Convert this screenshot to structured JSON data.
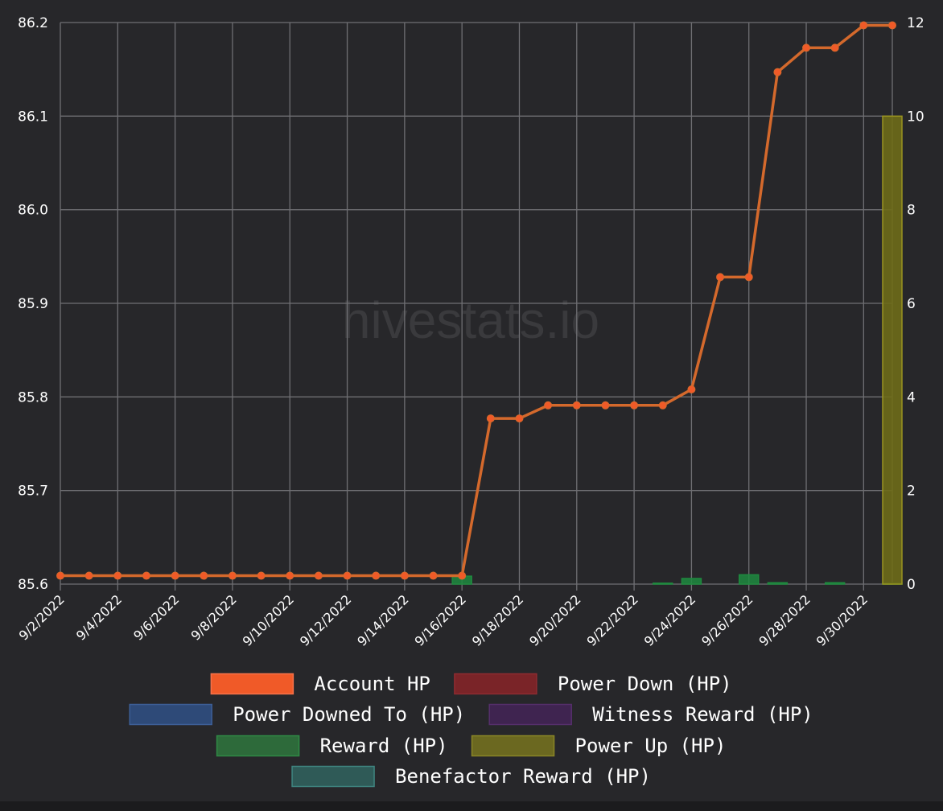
{
  "watermark": "hivestats.io",
  "colors": {
    "account_hp_line": "#d4692c",
    "account_hp_point": "#f05a28",
    "reward": "#1f8a3f",
    "power_up": "#6e6b18",
    "power_up_border": "#9a941f"
  },
  "chart_data": {
    "type": "line",
    "grid": true,
    "legend_position": "bottom",
    "x": [
      "9/2/2022",
      "9/3/2022",
      "9/4/2022",
      "9/5/2022",
      "9/6/2022",
      "9/7/2022",
      "9/8/2022",
      "9/9/2022",
      "9/10/2022",
      "9/11/2022",
      "9/12/2022",
      "9/13/2022",
      "9/14/2022",
      "9/15/2022",
      "9/16/2022",
      "9/17/2022",
      "9/18/2022",
      "9/19/2022",
      "9/20/2022",
      "9/21/2022",
      "9/22/2022",
      "9/23/2022",
      "9/24/2022",
      "9/25/2022",
      "9/26/2022",
      "9/27/2022",
      "9/28/2022",
      "9/29/2022",
      "9/30/2022",
      "10/1/2022"
    ],
    "x_tick_labels": [
      "9/2/2022",
      "9/4/2022",
      "9/6/2022",
      "9/8/2022",
      "9/10/2022",
      "9/12/2022",
      "9/14/2022",
      "9/16/2022",
      "9/18/2022",
      "9/20/2022",
      "9/22/2022",
      "9/24/2022",
      "9/26/2022",
      "9/28/2022",
      "9/30/2022"
    ],
    "y_left": {
      "min": 85.6,
      "max": 86.2,
      "ticks": [
        "85.6",
        "85.7",
        "85.8",
        "85.9",
        "86.0",
        "86.1",
        "86.2"
      ]
    },
    "y_right": {
      "min": 0,
      "max": 12,
      "ticks": [
        "0",
        "2",
        "4",
        "6",
        "8",
        "10",
        "12"
      ]
    },
    "series": [
      {
        "name": "Account HP",
        "axis": "left",
        "type": "line",
        "values": [
          85.609,
          85.609,
          85.609,
          85.609,
          85.609,
          85.609,
          85.609,
          85.609,
          85.609,
          85.609,
          85.609,
          85.609,
          85.609,
          85.609,
          85.609,
          85.777,
          85.777,
          85.791,
          85.791,
          85.791,
          85.791,
          85.791,
          85.808,
          85.928,
          85.928,
          86.147,
          86.173,
          86.173,
          86.197,
          86.197
        ]
      },
      {
        "name": "Power Down (HP)",
        "axis": "right",
        "type": "bar",
        "values": [
          0,
          0,
          0,
          0,
          0,
          0,
          0,
          0,
          0,
          0,
          0,
          0,
          0,
          0,
          0,
          0,
          0,
          0,
          0,
          0,
          0,
          0,
          0,
          0,
          0,
          0,
          0,
          0,
          0,
          0
        ]
      },
      {
        "name": "Power Downed To (HP)",
        "axis": "right",
        "type": "bar",
        "values": [
          0,
          0,
          0,
          0,
          0,
          0,
          0,
          0,
          0,
          0,
          0,
          0,
          0,
          0,
          0,
          0,
          0,
          0,
          0,
          0,
          0,
          0,
          0,
          0,
          0,
          0,
          0,
          0,
          0,
          0
        ]
      },
      {
        "name": "Witness Reward (HP)",
        "axis": "right",
        "type": "bar",
        "values": [
          0,
          0,
          0,
          0,
          0,
          0,
          0,
          0,
          0,
          0,
          0,
          0,
          0,
          0,
          0,
          0,
          0,
          0,
          0,
          0,
          0,
          0,
          0,
          0,
          0,
          0,
          0,
          0,
          0,
          0
        ]
      },
      {
        "name": "Reward (HP)",
        "axis": "right",
        "type": "bar",
        "values": [
          0,
          0,
          0,
          0,
          0,
          0,
          0,
          0,
          0,
          0,
          0,
          0,
          0,
          0,
          0.17,
          0,
          0,
          0,
          0,
          0,
          0,
          0.02,
          0.12,
          0,
          0.2,
          0.03,
          0,
          0.03,
          0,
          0.02
        ]
      },
      {
        "name": "Power Up (HP)",
        "axis": "right",
        "type": "bar",
        "values": [
          0,
          0,
          0,
          0,
          0,
          0,
          0,
          0,
          0,
          0,
          0,
          0,
          0,
          0,
          0,
          0,
          0,
          0,
          0,
          0,
          0,
          0,
          0,
          0,
          0,
          0,
          0,
          0,
          0,
          10
        ]
      },
      {
        "name": "Benefactor Reward (HP)",
        "axis": "right",
        "type": "bar",
        "values": [
          0,
          0,
          0,
          0,
          0,
          0,
          0,
          0,
          0,
          0,
          0,
          0,
          0,
          0,
          0,
          0,
          0,
          0,
          0,
          0,
          0,
          0,
          0,
          0,
          0,
          0,
          0,
          0,
          0,
          0
        ]
      }
    ]
  },
  "legend": {
    "rows": [
      [
        {
          "label": "Account HP",
          "fill": "#f05a28",
          "stroke": "#f7724a"
        },
        {
          "label": "Power Down (HP)",
          "fill": "#7a2428",
          "stroke": "#8e2b30"
        }
      ],
      [
        {
          "label": "Power Downed To (HP)",
          "fill": "#2e4a78",
          "stroke": "#3d5f97"
        },
        {
          "label": "Witness Reward (HP)",
          "fill": "#3f2450",
          "stroke": "#552f6b"
        }
      ],
      [
        {
          "label": "Reward (HP)",
          "fill": "#2d6a3a",
          "stroke": "#2f8a45"
        },
        {
          "label": "Power Up (HP)",
          "fill": "#6b6820",
          "stroke": "#8a8626"
        }
      ],
      [
        {
          "label": "Benefactor Reward (HP)",
          "fill": "#2f5a57",
          "stroke": "#3f8580"
        }
      ]
    ]
  }
}
